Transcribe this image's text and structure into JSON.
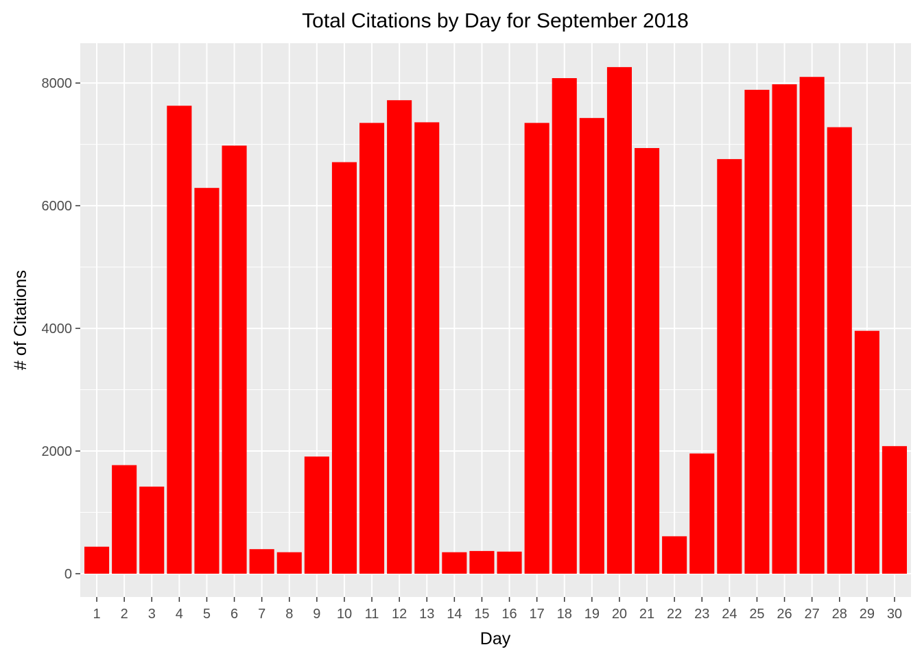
{
  "chart_data": {
    "type": "bar",
    "title": "Total Citations by Day for September 2018",
    "xlabel": "Day",
    "ylabel": "# of Citations",
    "categories": [
      "1",
      "2",
      "3",
      "4",
      "5",
      "6",
      "7",
      "8",
      "9",
      "10",
      "11",
      "12",
      "13",
      "14",
      "15",
      "16",
      "17",
      "18",
      "19",
      "20",
      "21",
      "22",
      "23",
      "24",
      "25",
      "26",
      "27",
      "28",
      "29",
      "30"
    ],
    "values": [
      440,
      1770,
      1420,
      7630,
      6290,
      6980,
      400,
      350,
      1910,
      6710,
      7350,
      7720,
      7360,
      350,
      370,
      360,
      7350,
      8080,
      7430,
      8260,
      6940,
      610,
      1960,
      6760,
      7890,
      7980,
      8100,
      7280,
      3960,
      2080
    ],
    "ylim": [
      -380,
      8650
    ],
    "yticks": [
      0,
      2000,
      4000,
      6000,
      8000
    ],
    "grid": true,
    "legend": "none",
    "bar_color": "#FF0000",
    "panel_color": "#EBEBEB",
    "grid_color": "#FFFFFF"
  }
}
